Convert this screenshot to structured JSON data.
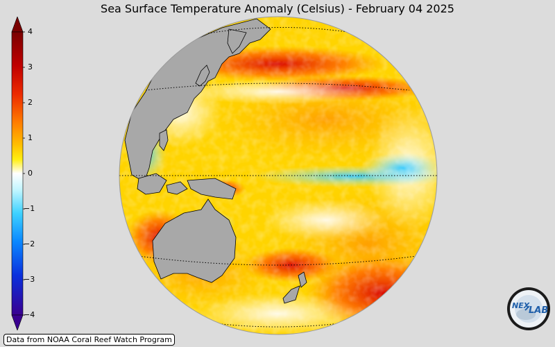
{
  "title": "Sea Surface Temperature Anomaly (Celsius) - February 04 2025",
  "colorbar": {
    "ticks": [
      "4",
      "3",
      "2",
      "1",
      "0",
      "−1",
      "−2",
      "−3",
      "−4"
    ],
    "colors": [
      "#6a0000",
      "#b00000",
      "#e11b00",
      "#ff6a00",
      "#ffb000",
      "#ffe600",
      "#ffffff",
      "#c8f6ff",
      "#40d6ff",
      "#0a8cff",
      "#0030e0",
      "#2a0090"
    ]
  },
  "map": {
    "ocean_warm": "#ffd400",
    "land_color": "#a8a8a8"
  },
  "credit": "Data from NOAA Coral Reef Watch Program",
  "logo": {
    "text_left": "NEX",
    "text_right": "LAB"
  }
}
